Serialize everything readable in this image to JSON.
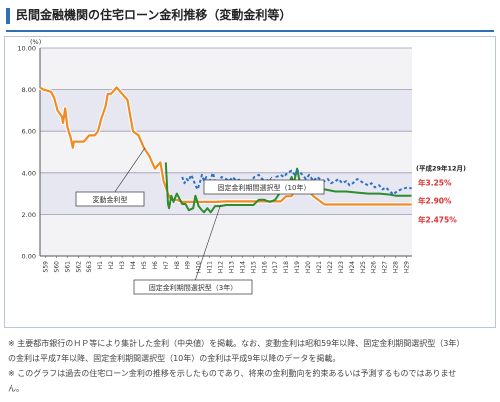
{
  "header": {
    "title": "民間金融機関の住宅ローン金利推移（変動金利等）"
  },
  "chart_data": {
    "type": "line",
    "y_unit": "(%)",
    "ylim": [
      0,
      10
    ],
    "y_ticks": [
      "0.00",
      "2.00",
      "4.00",
      "6.00",
      "8.00",
      "10.00"
    ],
    "x_labels": [
      "S59",
      "S60",
      "S61",
      "S62",
      "S63",
      "H1",
      "H2",
      "H3",
      "H4",
      "H5",
      "H6",
      "H7",
      "H8",
      "H9",
      "H10",
      "H11",
      "H12",
      "H13",
      "H14",
      "H15",
      "H16",
      "H17",
      "H18",
      "H19",
      "H20",
      "H21",
      "H22",
      "H23",
      "H24",
      "H25",
      "H26",
      "H27",
      "H28",
      "H29"
    ],
    "grid": true,
    "date_label": "(平成29年12月)",
    "annotations": {
      "fixed10": "固定金利期間選択型（10年）",
      "floating": "変動金利型",
      "fixed3": "固定金利期間選択型（3年）"
    },
    "series": [
      {
        "name": "変動金利型",
        "color": "#f08a24",
        "end_label": "年2.475%",
        "points": [
          [
            1984.0,
            8.1
          ],
          [
            1984.3,
            8.0
          ],
          [
            1985.0,
            7.9
          ],
          [
            1985.3,
            7.6
          ],
          [
            1985.6,
            7.0
          ],
          [
            1986.0,
            6.7
          ],
          [
            1986.1,
            6.4
          ],
          [
            1986.3,
            7.1
          ],
          [
            1986.5,
            6.2
          ],
          [
            1986.8,
            5.7
          ],
          [
            1987.0,
            5.2
          ],
          [
            1987.1,
            5.5
          ],
          [
            1987.5,
            5.5
          ],
          [
            1988.0,
            5.5
          ],
          [
            1988.5,
            5.8
          ],
          [
            1989.0,
            5.8
          ],
          [
            1989.3,
            6.0
          ],
          [
            1989.6,
            6.6
          ],
          [
            1990.0,
            7.2
          ],
          [
            1990.2,
            7.8
          ],
          [
            1990.5,
            7.8
          ],
          [
            1991.0,
            8.1
          ],
          [
            1991.5,
            7.8
          ],
          [
            1992.0,
            7.5
          ],
          [
            1992.2,
            6.9
          ],
          [
            1992.5,
            6.0
          ],
          [
            1993.0,
            5.8
          ],
          [
            1993.5,
            5.2
          ],
          [
            1994.0,
            4.8
          ],
          [
            1994.5,
            4.2
          ],
          [
            1995.0,
            4.5
          ],
          [
            1995.3,
            3.6
          ],
          [
            1995.7,
            3.0
          ],
          [
            1996.0,
            2.7
          ],
          [
            1996.5,
            2.7
          ],
          [
            1997.0,
            2.6
          ],
          [
            1998.0,
            2.6
          ],
          [
            1999.0,
            2.6
          ],
          [
            2000.0,
            2.6
          ],
          [
            2001.0,
            2.625
          ],
          [
            2002.0,
            2.625
          ],
          [
            2003.0,
            2.625
          ],
          [
            2004.0,
            2.625
          ],
          [
            2005.0,
            2.625
          ],
          [
            2006.0,
            2.625
          ],
          [
            2006.5,
            2.875
          ],
          [
            2007.0,
            2.875
          ],
          [
            2007.3,
            3.125
          ],
          [
            2008.0,
            3.125
          ],
          [
            2008.5,
            3.125
          ],
          [
            2009.0,
            2.875
          ],
          [
            2010.0,
            2.475
          ],
          [
            2011.0,
            2.475
          ],
          [
            2012.0,
            2.475
          ],
          [
            2013.0,
            2.475
          ],
          [
            2014.0,
            2.475
          ],
          [
            2015.0,
            2.475
          ],
          [
            2016.0,
            2.475
          ],
          [
            2017.0,
            2.475
          ],
          [
            2017.95,
            2.475
          ]
        ]
      },
      {
        "name": "固定金利期間選択型（3年）",
        "color": "#2e8b2e",
        "end_label": "年2.90%",
        "points": [
          [
            1995.5,
            4.5
          ],
          [
            1995.6,
            3.5
          ],
          [
            1995.7,
            2.5
          ],
          [
            1995.8,
            2.3
          ],
          [
            1996.0,
            2.9
          ],
          [
            1996.2,
            2.6
          ],
          [
            1996.5,
            3.0
          ],
          [
            1997.0,
            2.5
          ],
          [
            1997.3,
            2.5
          ],
          [
            1997.6,
            2.2
          ],
          [
            1998.0,
            2.3
          ],
          [
            1998.2,
            2.9
          ],
          [
            1998.5,
            2.4
          ],
          [
            1998.8,
            2.2
          ],
          [
            1999.0,
            2.1
          ],
          [
            1999.3,
            2.3
          ],
          [
            1999.6,
            2.1
          ],
          [
            2000.0,
            2.4
          ],
          [
            2000.5,
            2.4
          ],
          [
            2001.0,
            2.45
          ],
          [
            2002.0,
            2.45
          ],
          [
            2003.0,
            2.45
          ],
          [
            2003.5,
            2.45
          ],
          [
            2004.0,
            2.7
          ],
          [
            2004.5,
            2.7
          ],
          [
            2005.0,
            2.6
          ],
          [
            2005.5,
            2.7
          ],
          [
            2006.0,
            3.1
          ],
          [
            2006.3,
            3.3
          ],
          [
            2006.6,
            3.3
          ],
          [
            2007.0,
            3.8
          ],
          [
            2007.2,
            3.5
          ],
          [
            2007.5,
            4.2
          ],
          [
            2007.8,
            3.4
          ],
          [
            2008.0,
            3.3
          ],
          [
            2008.5,
            3.3
          ],
          [
            2009.0,
            3.3
          ],
          [
            2009.5,
            3.3
          ],
          [
            2010.0,
            3.2
          ],
          [
            2011.0,
            3.1
          ],
          [
            2012.0,
            3.1
          ],
          [
            2013.0,
            3.05
          ],
          [
            2014.0,
            3.0
          ],
          [
            2015.0,
            3.0
          ],
          [
            2016.0,
            2.95
          ],
          [
            2016.5,
            2.9
          ],
          [
            2017.0,
            2.9
          ],
          [
            2017.95,
            2.9
          ]
        ]
      },
      {
        "name": "固定金利期間選択型（10年）",
        "color": "#2a72c8",
        "end_label": "年3.25%",
        "points": [
          [
            1997.0,
            3.8
          ],
          [
            1997.2,
            3.5
          ],
          [
            1997.4,
            3.7
          ],
          [
            1997.6,
            3.6
          ],
          [
            1997.8,
            3.9
          ],
          [
            1998.0,
            3.7
          ],
          [
            1998.2,
            3.4
          ],
          [
            1998.4,
            3.2
          ],
          [
            1998.6,
            3.5
          ],
          [
            1998.8,
            3.9
          ],
          [
            1999.0,
            3.6
          ],
          [
            1999.2,
            3.8
          ],
          [
            1999.4,
            3.5
          ],
          [
            1999.6,
            3.7
          ],
          [
            1999.8,
            4.0
          ],
          [
            2000.0,
            3.6
          ],
          [
            2000.3,
            3.5
          ],
          [
            2000.6,
            3.8
          ],
          [
            2001.0,
            3.7
          ],
          [
            2001.3,
            3.6
          ],
          [
            2001.6,
            3.8
          ],
          [
            2002.0,
            3.6
          ],
          [
            2002.3,
            3.7
          ],
          [
            2002.6,
            3.5
          ],
          [
            2003.0,
            3.4
          ],
          [
            2003.3,
            3.6
          ],
          [
            2003.6,
            3.8
          ],
          [
            2004.0,
            3.9
          ],
          [
            2004.3,
            3.7
          ],
          [
            2004.6,
            3.6
          ],
          [
            2005.0,
            3.7
          ],
          [
            2005.3,
            3.5
          ],
          [
            2005.6,
            3.8
          ],
          [
            2006.0,
            3.9
          ],
          [
            2006.3,
            3.8
          ],
          [
            2006.6,
            4.0
          ],
          [
            2007.0,
            4.1
          ],
          [
            2007.3,
            3.9
          ],
          [
            2007.6,
            4.1
          ],
          [
            2008.0,
            3.9
          ],
          [
            2008.3,
            3.7
          ],
          [
            2008.6,
            3.9
          ],
          [
            2009.0,
            3.6
          ],
          [
            2009.3,
            3.8
          ],
          [
            2009.6,
            3.7
          ],
          [
            2010.0,
            3.6
          ],
          [
            2010.3,
            3.7
          ],
          [
            2010.6,
            3.5
          ],
          [
            2011.0,
            3.6
          ],
          [
            2011.3,
            3.7
          ],
          [
            2011.6,
            3.5
          ],
          [
            2012.0,
            3.6
          ],
          [
            2012.3,
            3.4
          ],
          [
            2012.6,
            3.5
          ],
          [
            2013.0,
            3.7
          ],
          [
            2013.3,
            3.6
          ],
          [
            2013.6,
            3.5
          ],
          [
            2014.0,
            3.4
          ],
          [
            2014.3,
            3.5
          ],
          [
            2014.6,
            3.3
          ],
          [
            2015.0,
            3.4
          ],
          [
            2015.3,
            3.2
          ],
          [
            2015.6,
            3.3
          ],
          [
            2016.0,
            3.1
          ],
          [
            2016.3,
            2.95
          ],
          [
            2016.6,
            3.1
          ],
          [
            2017.0,
            3.2
          ],
          [
            2017.3,
            3.25
          ],
          [
            2017.6,
            3.3
          ],
          [
            2017.95,
            3.25
          ]
        ]
      }
    ]
  },
  "notes": [
    "※ 主要都市銀行のＨＰ等により集計した金利（中央値）を掲載。なお、変動金利は昭和59年以降、固定金利期間選択型（3年）",
    "の金利は平成7年以降、固定金利期間選択型（10年）の金利は平成9年以降のデータを掲載。",
    "※ このグラフは過去の住宅ローン金利の推移を示したものであり、将来の金利動向を約束あるいは予測するものではありませ",
    "ん。"
  ]
}
